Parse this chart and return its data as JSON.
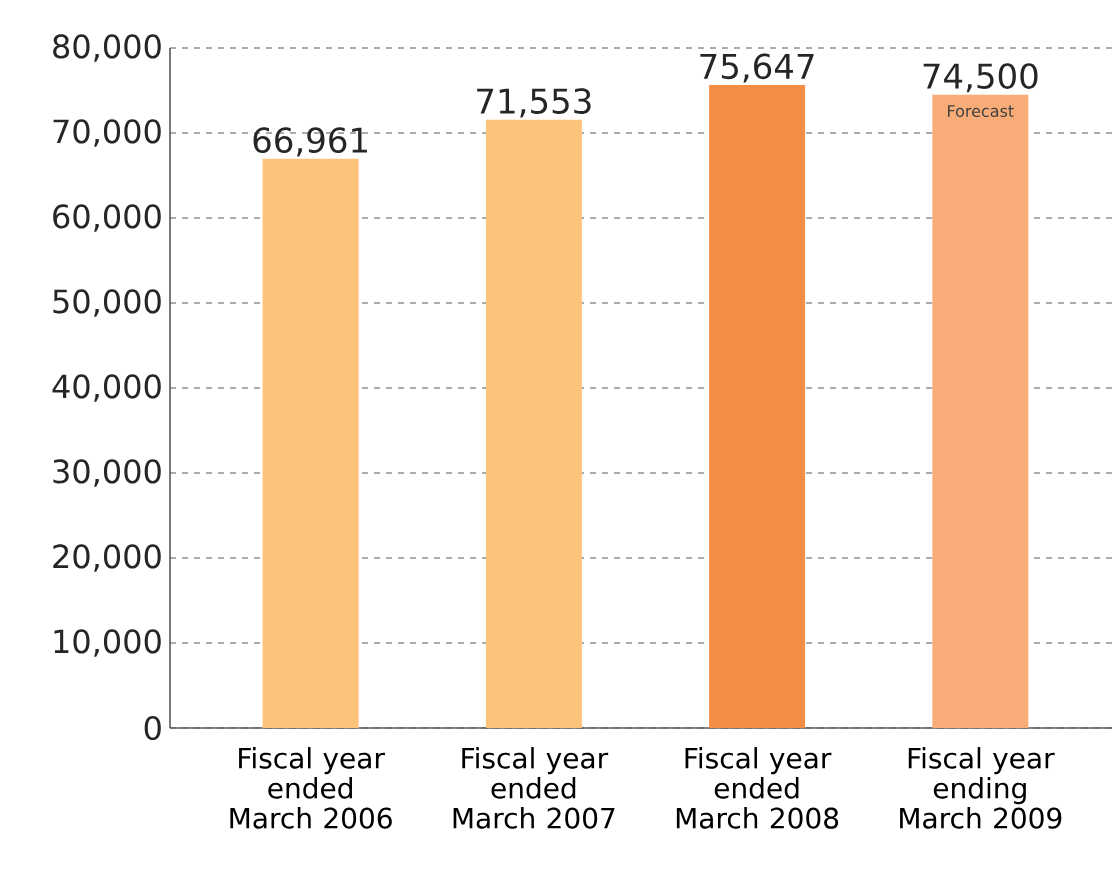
{
  "chart_data": {
    "type": "bar",
    "categories": [
      "Fiscal year ended March 2006",
      "Fiscal year ended March 2007",
      "Fiscal year ended March 2008",
      "Fiscal year ending March 2009"
    ],
    "values": [
      66961,
      71553,
      75647,
      74500
    ],
    "colors": [
      "#fdc27c",
      "#fdc27c",
      "#f68d45",
      "#f8ad78"
    ],
    "value_labels": [
      "66,961",
      "71,553",
      "75,647",
      "74,500"
    ],
    "annotations": [
      "Forecast"
    ],
    "ylim": [
      0,
      80000
    ],
    "yticks": [
      0,
      {
        "value": 10000,
        "label": "10,000"
      },
      {
        "value": 20000,
        "label": "20,000"
      },
      {
        "value": 30000,
        "label": "30,000"
      },
      {
        "value": 40000,
        "label": "40,000"
      },
      {
        "value": 50000,
        "label": "50,000"
      },
      {
        "value": 60000,
        "label": "60,000"
      },
      {
        "value": 70000,
        "label": "70,000"
      },
      {
        "value": 80000,
        "label": "80,000"
      }
    ],
    "grid": "y"
  }
}
